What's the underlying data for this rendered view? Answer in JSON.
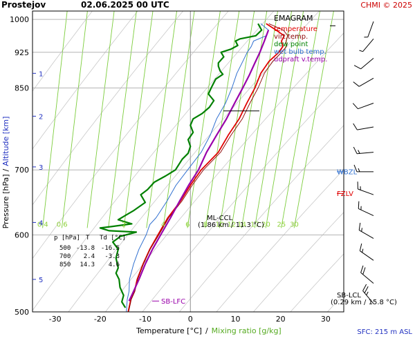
{
  "header": {
    "station": "Prostejov",
    "datetime": "02.06.2025 00 UTC",
    "credit": "CHMI © 2025"
  },
  "colors": {
    "temperature": "#e00000",
    "virt_temp": "#8b0000",
    "dew_point": "#008000",
    "wet_bulb": "#3070d0",
    "updraft": "#9900aa",
    "mixing_ratio": "#7ccd3c",
    "dry_adiabat": "#c8c8c8",
    "isobar": "#b4b4b4"
  },
  "chart_data": {
    "type": "line",
    "subtype": "emagram",
    "title": "EMAGRAM",
    "xlabel": "Temperature [°C]",
    "xlabel_sep": "/",
    "xlabel2": "Mixing ratio [g/kg]",
    "ylabel": "Pressure [hPa]",
    "ylabel_sep": "/",
    "ylabel2": "Altitude [km]",
    "xlim": [
      -35,
      34
    ],
    "ylim": [
      1020,
      500
    ],
    "y_scale": "log",
    "x_ticks": [
      -30,
      -20,
      -10,
      0,
      10,
      20,
      30
    ],
    "y_ticks": [
      500,
      600,
      700,
      850,
      925,
      1000
    ],
    "altitude_ticks": [
      {
        "label": "1",
        "p": 880
      },
      {
        "label": "2",
        "p": 795
      },
      {
        "label": "3",
        "p": 705
      },
      {
        "label": "4",
        "p": 618
      },
      {
        "label": "5",
        "p": 540
      }
    ],
    "mixing_ratio_lines": [
      0.4,
      0.6,
      1,
      1.5,
      2,
      3,
      4,
      6,
      8,
      10,
      12,
      14,
      17,
      20,
      25,
      30
    ],
    "mixing_ratio_labels": [
      {
        "label": "0.4",
        "x": 0.4
      },
      {
        "label": "0.6",
        "x": 0.6
      },
      {
        "label": "2",
        "x": 2
      },
      {
        "label": "4",
        "x": 4
      },
      {
        "label": "6",
        "x": 6
      },
      {
        "label": "8",
        "x": 8
      },
      {
        "label": "10",
        "x": 10
      },
      {
        "label": "12",
        "x": 12
      },
      {
        "label": "14",
        "x": 14
      },
      {
        "label": "17",
        "x": 17
      },
      {
        "label": "20",
        "x": 20
      },
      {
        "label": "25",
        "x": 25
      },
      {
        "label": "30",
        "x": 30
      }
    ],
    "legend": {
      "placement": "top-right",
      "entries": [
        {
          "label": "temperature",
          "key": "temperature"
        },
        {
          "label": "virt.temp.",
          "key": "virt_temp"
        },
        {
          "label": "dew point",
          "key": "dew_point"
        },
        {
          "label": "wet bulb temp.",
          "key": "wet_bulb"
        },
        {
          "label": "udpraft v.temp.",
          "key": "updraft"
        }
      ]
    },
    "series": [
      {
        "key": "temperature",
        "name": "temperature",
        "points": [
          [
            16.8,
            990
          ],
          [
            19.0,
            975
          ],
          [
            20.8,
            962
          ],
          [
            20.2,
            950
          ],
          [
            20.5,
            938
          ],
          [
            19.6,
            925
          ],
          [
            17.4,
            905
          ],
          [
            15.6,
            880
          ],
          [
            14.3,
            850
          ],
          [
            12.5,
            820
          ],
          [
            10.8,
            790
          ],
          [
            8.4,
            760
          ],
          [
            6.2,
            730
          ],
          [
            2.4,
            700
          ],
          [
            0.0,
            675
          ],
          [
            -2.2,
            650
          ],
          [
            -5.0,
            625
          ],
          [
            -7.2,
            600
          ],
          [
            -9.0,
            580
          ],
          [
            -10.5,
            560
          ],
          [
            -11.8,
            540
          ],
          [
            -12.4,
            525
          ],
          [
            -13.2,
            515
          ],
          [
            -13.8,
            500
          ]
        ]
      },
      {
        "key": "virt_temp",
        "name": "virt.temp.",
        "points": [
          [
            17.4,
            990
          ],
          [
            20.6,
            975
          ],
          [
            21.6,
            962
          ],
          [
            21.2,
            950
          ],
          [
            21.3,
            938
          ],
          [
            20.2,
            925
          ],
          [
            18.2,
            905
          ],
          [
            16.4,
            880
          ],
          [
            15.0,
            850
          ],
          [
            13.2,
            820
          ],
          [
            11.5,
            790
          ],
          [
            9.0,
            760
          ],
          [
            6.7,
            730
          ],
          [
            2.9,
            700
          ],
          [
            0.4,
            675
          ],
          [
            -1.9,
            650
          ],
          [
            -4.8,
            625
          ],
          [
            -7.0,
            600
          ],
          [
            -8.9,
            580
          ],
          [
            -10.4,
            560
          ],
          [
            -11.7,
            540
          ],
          [
            -12.3,
            525
          ],
          [
            -13.1,
            515
          ],
          [
            -13.7,
            500
          ]
        ]
      },
      {
        "key": "dew_point",
        "name": "dew point",
        "points": [
          [
            15.0,
            990
          ],
          [
            15.8,
            975
          ],
          [
            14.5,
            962
          ],
          [
            11.0,
            955
          ],
          [
            10.0,
            950
          ],
          [
            10.5,
            940
          ],
          [
            9.0,
            932
          ],
          [
            6.8,
            925
          ],
          [
            7.4,
            915
          ],
          [
            6.2,
            902
          ],
          [
            6.2,
            895
          ],
          [
            6.6,
            885
          ],
          [
            7.2,
            878
          ],
          [
            5.6,
            868
          ],
          [
            4.6,
            850
          ],
          [
            4.0,
            838
          ],
          [
            5.2,
            825
          ],
          [
            4.2,
            812
          ],
          [
            2.6,
            800
          ],
          [
            0.6,
            790
          ],
          [
            0.0,
            778
          ],
          [
            0.6,
            765
          ],
          [
            -0.5,
            752
          ],
          [
            0.0,
            740
          ],
          [
            -0.5,
            728
          ],
          [
            -1.8,
            718
          ],
          [
            -3.3,
            700
          ],
          [
            -5.5,
            690
          ],
          [
            -8.0,
            680
          ],
          [
            -9.5,
            668
          ],
          [
            -11.0,
            660
          ],
          [
            -10.0,
            648
          ],
          [
            -12.5,
            636
          ],
          [
            -14.5,
            628
          ],
          [
            -16.0,
            622
          ],
          [
            -13.0,
            616
          ],
          [
            -17.5,
            612
          ],
          [
            -20.0,
            610
          ],
          [
            -18.0,
            606
          ],
          [
            -12.0,
            604
          ],
          [
            -15.5,
            598
          ],
          [
            -17.2,
            590
          ],
          [
            -16.0,
            580
          ],
          [
            -16.5,
            568
          ],
          [
            -16.0,
            555
          ],
          [
            -16.5,
            548
          ],
          [
            -15.8,
            540
          ],
          [
            -15.6,
            530
          ],
          [
            -14.8,
            520
          ],
          [
            -15.2,
            512
          ],
          [
            -14.4,
            505
          ]
        ]
      },
      {
        "key": "wet_bulb",
        "name": "wet bulb temp.",
        "points": [
          [
            15.6,
            990
          ],
          [
            17.3,
            975
          ],
          [
            16.8,
            962
          ],
          [
            14.0,
            950
          ],
          [
            13.5,
            938
          ],
          [
            12.6,
            925
          ],
          [
            11.6,
            905
          ],
          [
            10.3,
            880
          ],
          [
            9.2,
            850
          ],
          [
            7.8,
            820
          ],
          [
            5.8,
            790
          ],
          [
            4.4,
            760
          ],
          [
            2.4,
            730
          ],
          [
            -0.6,
            700
          ],
          [
            -3.2,
            675
          ],
          [
            -5.2,
            650
          ],
          [
            -7.6,
            625
          ],
          [
            -9.0,
            615
          ],
          [
            -9.8,
            600
          ],
          [
            -11.4,
            580
          ],
          [
            -12.6,
            560
          ],
          [
            -13.5,
            540
          ],
          [
            -13.6,
            525
          ],
          [
            -14.0,
            515
          ],
          [
            -14.2,
            500
          ]
        ]
      },
      {
        "key": "updraft",
        "name": "udpraft v.temp.",
        "points": [
          [
            17.3,
            975
          ],
          [
            16.4,
            950
          ],
          [
            15.4,
            925
          ],
          [
            14.2,
            900
          ],
          [
            13.0,
            875
          ],
          [
            11.6,
            850
          ],
          [
            9.8,
            820
          ],
          [
            8.0,
            790
          ],
          [
            5.8,
            760
          ],
          [
            3.6,
            730
          ],
          [
            1.8,
            700
          ],
          [
            -0.4,
            675
          ],
          [
            -2.4,
            650
          ],
          [
            -4.4,
            625
          ],
          [
            -6.6,
            600
          ],
          [
            -8.4,
            580
          ],
          [
            -10.0,
            560
          ],
          [
            -11.4,
            540
          ],
          [
            -12.6,
            525
          ],
          [
            -13.6,
            513
          ]
        ]
      }
    ],
    "markers": [
      {
        "label": "SB-LFC",
        "side": "left",
        "p": 513,
        "color": "#9900aa"
      },
      {
        "label": "FZLV",
        "side": "right",
        "p": 662,
        "color": "#e00000"
      },
      {
        "label": "WBZL",
        "side": "right",
        "p": 697,
        "color": "#3070d0"
      }
    ],
    "ml_ccl": {
      "label": "ML-CCL",
      "detail": "(1.86 km / 11.3 °C)",
      "t": 11.3,
      "p": 805
    },
    "sb_lcl": {
      "label": "SB-LCL",
      "detail": "(0.29 km / 15.8 °C)",
      "t": 15.8,
      "p": 985
    },
    "table": {
      "headers": [
        "p [hPa]",
        "T",
        "Td [°C]"
      ],
      "rows": [
        [
          "500",
          "-13.8",
          "-16.5"
        ],
        [
          "700",
          "2.4",
          "-3.3"
        ],
        [
          "850",
          "14.3",
          "4.6"
        ]
      ]
    },
    "wind_barbs": [
      {
        "p": 510,
        "dir": 320,
        "speed": 25
      },
      {
        "p": 535,
        "dir": 310,
        "speed": 20
      },
      {
        "p": 565,
        "dir": 305,
        "speed": 15
      },
      {
        "p": 595,
        "dir": 300,
        "speed": 15
      },
      {
        "p": 628,
        "dir": 295,
        "speed": 15
      },
      {
        "p": 660,
        "dir": 290,
        "speed": 15
      },
      {
        "p": 697,
        "dir": 270,
        "speed": 15
      },
      {
        "p": 730,
        "dir": 265,
        "speed": 15
      },
      {
        "p": 775,
        "dir": 260,
        "speed": 10
      },
      {
        "p": 820,
        "dir": 250,
        "speed": 10
      },
      {
        "p": 870,
        "dir": 240,
        "speed": 10
      },
      {
        "p": 912,
        "dir": 230,
        "speed": 10
      },
      {
        "p": 955,
        "dir": 220,
        "speed": 5
      },
      {
        "p": 995,
        "dir": 200,
        "speed": 5
      }
    ],
    "sfc": "SFC: 215 m ASL"
  }
}
